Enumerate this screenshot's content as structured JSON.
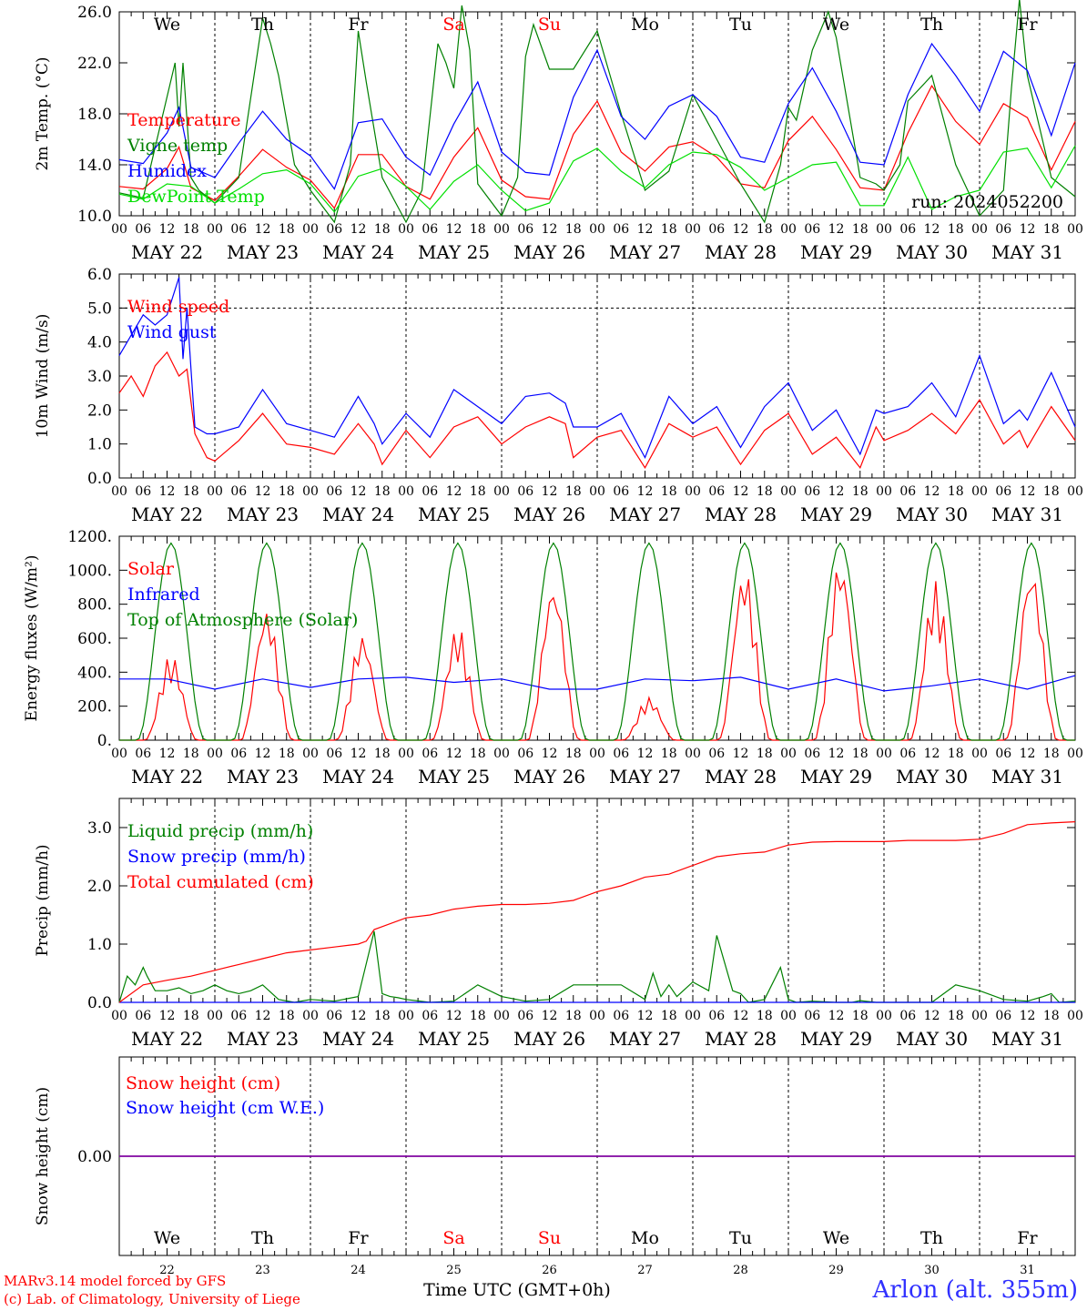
{
  "meta": {
    "run_label": "run: 2024052200",
    "station": "Arlon (alt. 355m)",
    "credit_line1": "MARv3.14 model forced by GFS",
    "credit_line2": "(c) Lab. of Climatology, University of Liege",
    "x_axis_title": "Time UTC (GMT+0h)"
  },
  "days": {
    "weekday_labels": [
      "We",
      "Th",
      "Fr",
      "Sa",
      "Su",
      "Mo",
      "Tu",
      "We",
      "Th",
      "Fr"
    ],
    "weekend_flags": [
      false,
      false,
      false,
      true,
      true,
      false,
      false,
      false,
      false,
      false
    ],
    "date_labels": [
      "MAY 22",
      "MAY 23",
      "MAY 24",
      "MAY 25",
      "MAY 26",
      "MAY 27",
      "MAY 28",
      "MAY 29",
      "MAY 30",
      "MAY 31"
    ],
    "day_numbers": [
      "22",
      "23",
      "24",
      "25",
      "26",
      "27",
      "28",
      "29",
      "30",
      "31"
    ],
    "hour_ticks": [
      "00",
      "06",
      "12",
      "18"
    ],
    "final_tick": "00"
  },
  "colors": {
    "red": "#ff0000",
    "green": "#008000",
    "blue": "#0000ff",
    "lightgreen": "#00e000",
    "purple": "#8000a0",
    "weekend": "#ff0000"
  },
  "chart_data": [
    {
      "type": "line",
      "title": "",
      "ylabel": "2m Temp. (°C)",
      "ylim": [
        10,
        26
      ],
      "yticks": [
        "10.0",
        "14.0",
        "18.0",
        "22.0",
        "26.0"
      ],
      "dashed_lines": [],
      "x_unit": "hours since 2024-05-22 00 UTC",
      "series": [
        {
          "name": "Temperature",
          "color": "#ff0000",
          "x": [
            0,
            6,
            12,
            15,
            18,
            24,
            30,
            36,
            42,
            48,
            54,
            60,
            66,
            72,
            78,
            84,
            90,
            96,
            102,
            108,
            114,
            120,
            126,
            132,
            138,
            144,
            150,
            156,
            162,
            168,
            174,
            180,
            186,
            192,
            198,
            204,
            210,
            216,
            222,
            228,
            234,
            240
          ],
          "y": [
            12.3,
            12.1,
            13.7,
            15.4,
            12.2,
            11.2,
            13.1,
            15.2,
            13.8,
            12.8,
            10.6,
            14.8,
            14.8,
            12.3,
            11.3,
            14.6,
            16.9,
            12.8,
            11.5,
            11.3,
            16.4,
            19.0,
            15.0,
            13.5,
            15.4,
            15.8,
            14.6,
            12.5,
            12.2,
            15.9,
            17.8,
            15.2,
            12.2,
            12.0,
            16.5,
            20.2,
            17.4,
            15.6,
            18.8,
            17.7,
            13.6,
            17.4
          ]
        },
        {
          "name": "Vigne temp",
          "color": "#008000",
          "x": [
            0,
            6,
            11,
            14,
            15,
            16,
            18,
            20,
            24,
            30,
            36,
            38,
            40,
            44,
            48,
            54,
            58,
            60,
            62,
            66,
            72,
            76,
            80,
            82,
            84,
            86,
            88,
            90,
            96,
            100,
            102,
            104,
            108,
            114,
            120,
            126,
            132,
            138,
            144,
            150,
            156,
            162,
            166,
            168,
            170,
            174,
            178,
            180,
            186,
            190,
            192,
            196,
            198,
            204,
            210,
            216,
            222,
            224,
            226,
            228,
            234,
            240
          ],
          "y": [
            11.8,
            11.4,
            18.0,
            22.0,
            17.0,
            22.0,
            13.0,
            12.0,
            11.0,
            13.0,
            25.5,
            23.5,
            21.0,
            14.0,
            12.0,
            9.5,
            14.0,
            24.5,
            20.5,
            13.0,
            9.5,
            12.0,
            23.5,
            22.0,
            20.0,
            26.5,
            23.0,
            12.5,
            10.0,
            13.0,
            22.5,
            25.0,
            21.5,
            21.5,
            24.5,
            18.0,
            12.0,
            13.5,
            19.5,
            16.0,
            12.5,
            9.5,
            14.0,
            18.5,
            17.5,
            23.0,
            26.0,
            24.0,
            13.0,
            12.5,
            12.0,
            14.0,
            19.0,
            21.0,
            14.0,
            10.0,
            12.0,
            20.0,
            27.0,
            21.0,
            13.0,
            11.5
          ]
        },
        {
          "name": "Humidex",
          "color": "#0000ff",
          "x": [
            0,
            6,
            12,
            15,
            18,
            24,
            30,
            36,
            42,
            48,
            54,
            60,
            66,
            72,
            78,
            84,
            90,
            96,
            102,
            108,
            114,
            120,
            126,
            132,
            138,
            144,
            150,
            156,
            162,
            168,
            174,
            180,
            186,
            192,
            198,
            204,
            210,
            216,
            222,
            228,
            234,
            240
          ],
          "y": [
            14.4,
            14.1,
            16.5,
            18.5,
            13.8,
            13.0,
            15.7,
            18.2,
            16.0,
            14.7,
            12.1,
            17.3,
            17.6,
            14.6,
            13.2,
            17.2,
            20.5,
            15.0,
            13.4,
            13.2,
            19.3,
            23.0,
            17.8,
            16.0,
            18.6,
            19.5,
            17.8,
            14.6,
            14.2,
            18.8,
            21.6,
            18.2,
            14.2,
            14.0,
            19.5,
            23.5,
            21.0,
            18.2,
            22.9,
            21.4,
            16.3,
            22.0
          ]
        },
        {
          "name": "DewPoint Temp",
          "color": "#00e000",
          "x": [
            0,
            6,
            12,
            18,
            24,
            30,
            36,
            42,
            48,
            54,
            60,
            66,
            72,
            78,
            84,
            90,
            96,
            102,
            108,
            114,
            120,
            126,
            132,
            138,
            144,
            150,
            156,
            162,
            168,
            174,
            180,
            186,
            192,
            198,
            204,
            210,
            216,
            222,
            228,
            234,
            240
          ],
          "y": [
            11.7,
            11.3,
            12.5,
            12.3,
            11.0,
            12.1,
            13.3,
            13.6,
            12.5,
            10.3,
            13.1,
            13.7,
            12.3,
            10.5,
            12.7,
            14.0,
            12.0,
            10.4,
            11.0,
            14.3,
            15.3,
            13.5,
            12.2,
            14.0,
            15.0,
            14.8,
            13.8,
            12.0,
            13.0,
            14.0,
            14.2,
            10.8,
            10.8,
            14.6,
            10.5,
            11.5,
            12.0,
            15.0,
            15.3,
            12.2,
            15.5
          ]
        }
      ]
    },
    {
      "type": "line",
      "title": "",
      "ylabel": "10m Wind (m/s)",
      "ylim": [
        0,
        6
      ],
      "yticks": [
        "0.0",
        "1.0",
        "2.0",
        "3.0",
        "4.0",
        "5.0",
        "6.0"
      ],
      "dashed_lines": [
        5.0
      ],
      "x_unit": "hours since 2024-05-22 00 UTC",
      "series": [
        {
          "name": "Wind speed",
          "color": "#ff0000",
          "x": [
            0,
            3,
            6,
            9,
            12,
            15,
            17,
            19,
            22,
            24,
            30,
            36,
            42,
            48,
            54,
            60,
            64,
            66,
            72,
            78,
            84,
            90,
            96,
            102,
            108,
            112,
            114,
            120,
            126,
            132,
            138,
            144,
            150,
            156,
            162,
            168,
            174,
            180,
            186,
            190,
            192,
            198,
            204,
            210,
            216,
            222,
            226,
            228,
            234,
            240
          ],
          "y": [
            2.5,
            3.0,
            2.4,
            3.3,
            3.7,
            3.0,
            3.2,
            1.3,
            0.6,
            0.5,
            1.1,
            1.9,
            1.0,
            0.9,
            0.7,
            1.6,
            1.0,
            0.4,
            1.4,
            0.6,
            1.5,
            1.8,
            1.0,
            1.5,
            1.8,
            1.6,
            0.6,
            1.2,
            1.4,
            0.3,
            1.6,
            1.2,
            1.5,
            0.4,
            1.4,
            1.9,
            0.7,
            1.2,
            0.3,
            1.5,
            1.1,
            1.4,
            1.9,
            1.3,
            2.3,
            1.0,
            1.4,
            0.9,
            2.1,
            1.1
          ]
        },
        {
          "name": "Wind gust",
          "color": "#0000ff",
          "x": [
            0,
            3,
            6,
            9,
            12,
            15,
            16,
            17,
            18,
            19,
            22,
            24,
            30,
            36,
            42,
            48,
            54,
            60,
            64,
            66,
            72,
            78,
            84,
            90,
            96,
            102,
            108,
            112,
            114,
            120,
            126,
            132,
            138,
            144,
            150,
            156,
            162,
            168,
            174,
            180,
            186,
            190,
            192,
            198,
            204,
            210,
            216,
            222,
            226,
            228,
            234,
            240
          ],
          "y": [
            3.6,
            4.2,
            4.8,
            4.5,
            4.8,
            5.9,
            3.5,
            5.0,
            3.2,
            1.5,
            1.3,
            1.3,
            1.5,
            2.6,
            1.6,
            1.4,
            1.2,
            2.4,
            1.6,
            1.0,
            1.9,
            1.2,
            2.6,
            2.1,
            1.6,
            2.4,
            2.5,
            2.2,
            1.5,
            1.5,
            1.9,
            0.6,
            2.4,
            1.6,
            2.1,
            0.9,
            2.1,
            2.8,
            1.4,
            2.0,
            0.7,
            2.0,
            1.9,
            2.1,
            2.8,
            1.8,
            3.6,
            1.6,
            2.0,
            1.7,
            3.1,
            1.5
          ]
        }
      ]
    },
    {
      "type": "line",
      "title": "",
      "ylabel": "Energy fluxes (W/m²)",
      "ylim": [
        0,
        1200
      ],
      "yticks": [
        "0.",
        "200.",
        "400.",
        "600.",
        "800.",
        "1000.",
        "1200."
      ],
      "dashed_lines": [],
      "x_unit": "hours since 2024-05-22 00 UTC",
      "series": [
        {
          "name": "Solar",
          "color": "#ff0000",
          "peaks": [
            420,
            650,
            520,
            560,
            780,
            210,
            850,
            900,
            780,
            860
          ]
        },
        {
          "name": "Infrared",
          "color": "#0000ff",
          "x": [
            0,
            12,
            24,
            36,
            48,
            60,
            72,
            84,
            96,
            108,
            120,
            132,
            144,
            156,
            168,
            180,
            192,
            204,
            216,
            228,
            240
          ],
          "y": [
            360,
            360,
            300,
            360,
            310,
            360,
            370,
            340,
            360,
            300,
            300,
            360,
            350,
            370,
            300,
            360,
            290,
            320,
            360,
            300,
            380
          ]
        },
        {
          "name": "Top of Atmosphere (Solar)",
          "color": "#008000",
          "peaks": [
            1160,
            1160,
            1160,
            1160,
            1160,
            1160,
            1160,
            1160,
            1160,
            1160
          ]
        }
      ]
    },
    {
      "type": "line",
      "title": "",
      "ylabel": "Precip (mm/h)",
      "ylim": [
        0,
        3.5
      ],
      "yticks": [
        "0.0",
        "1.0",
        "2.0",
        "3.0"
      ],
      "dashed_lines": [],
      "x_unit": "hours since 2024-05-22 00 UTC",
      "series": [
        {
          "name": "Liquid precip (mm/h)",
          "color": "#008000",
          "x": [
            0,
            2,
            4,
            6,
            7,
            9,
            12,
            15,
            18,
            21,
            24,
            27,
            30,
            33,
            36,
            40,
            44,
            48,
            54,
            60,
            64,
            66,
            68,
            70,
            72,
            78,
            84,
            90,
            96,
            102,
            108,
            114,
            120,
            126,
            132,
            134,
            136,
            138,
            140,
            144,
            148,
            150,
            154,
            156,
            158,
            162,
            166,
            168,
            170,
            174,
            180,
            184,
            186,
            190,
            196,
            204,
            210,
            216,
            222,
            228,
            232,
            234,
            236,
            240
          ],
          "y": [
            0.0,
            0.45,
            0.3,
            0.6,
            0.45,
            0.2,
            0.2,
            0.25,
            0.15,
            0.2,
            0.3,
            0.2,
            0.15,
            0.2,
            0.3,
            0.05,
            0.0,
            0.05,
            0.02,
            0.1,
            1.22,
            0.15,
            0.1,
            0.08,
            0.05,
            0.0,
            0.02,
            0.3,
            0.1,
            0.02,
            0.05,
            0.3,
            0.3,
            0.3,
            0.05,
            0.5,
            0.1,
            0.3,
            0.1,
            0.35,
            0.2,
            1.15,
            0.2,
            0.15,
            0.0,
            0.05,
            0.6,
            0.05,
            0.0,
            0.02,
            0.0,
            0.0,
            0.03,
            0.0,
            0.0,
            0.0,
            0.3,
            0.2,
            0.05,
            0.02,
            0.1,
            0.15,
            0.0,
            0.02
          ]
        },
        {
          "name": "Snow precip (mm/h)",
          "color": "#0000ff",
          "x": [
            0,
            240
          ],
          "y": [
            0,
            0
          ]
        },
        {
          "name": "Total cumulated (cm)",
          "color": "#ff0000",
          "x": [
            0,
            6,
            12,
            18,
            24,
            30,
            36,
            42,
            48,
            54,
            60,
            62,
            64,
            66,
            72,
            78,
            84,
            90,
            96,
            102,
            108,
            114,
            120,
            126,
            132,
            138,
            144,
            150,
            156,
            162,
            168,
            174,
            180,
            186,
            192,
            198,
            204,
            210,
            216,
            222,
            228,
            234,
            240
          ],
          "y": [
            0.0,
            0.3,
            0.38,
            0.45,
            0.55,
            0.65,
            0.75,
            0.85,
            0.9,
            0.95,
            1.0,
            1.05,
            1.25,
            1.3,
            1.45,
            1.5,
            1.6,
            1.65,
            1.68,
            1.68,
            1.7,
            1.75,
            1.9,
            2.0,
            2.15,
            2.2,
            2.35,
            2.5,
            2.55,
            2.58,
            2.7,
            2.75,
            2.76,
            2.76,
            2.76,
            2.78,
            2.78,
            2.78,
            2.8,
            2.9,
            3.05,
            3.08,
            3.1
          ]
        }
      ]
    },
    {
      "type": "line",
      "title": "",
      "ylabel": "Snow height (cm)",
      "ylim": [
        -1,
        1
      ],
      "yticks": [
        "0.00"
      ],
      "dashed_lines": [],
      "x_unit": "hours since 2024-05-22 00 UTC",
      "series": [
        {
          "name": "Snow height (cm)",
          "color": "#ff0000",
          "x": [
            0,
            240
          ],
          "y": [
            0,
            0
          ]
        },
        {
          "name": "Snow height (cm W.E.)",
          "color": "#0000ff",
          "x": [
            0,
            240
          ],
          "y": [
            0,
            0
          ]
        }
      ]
    }
  ]
}
